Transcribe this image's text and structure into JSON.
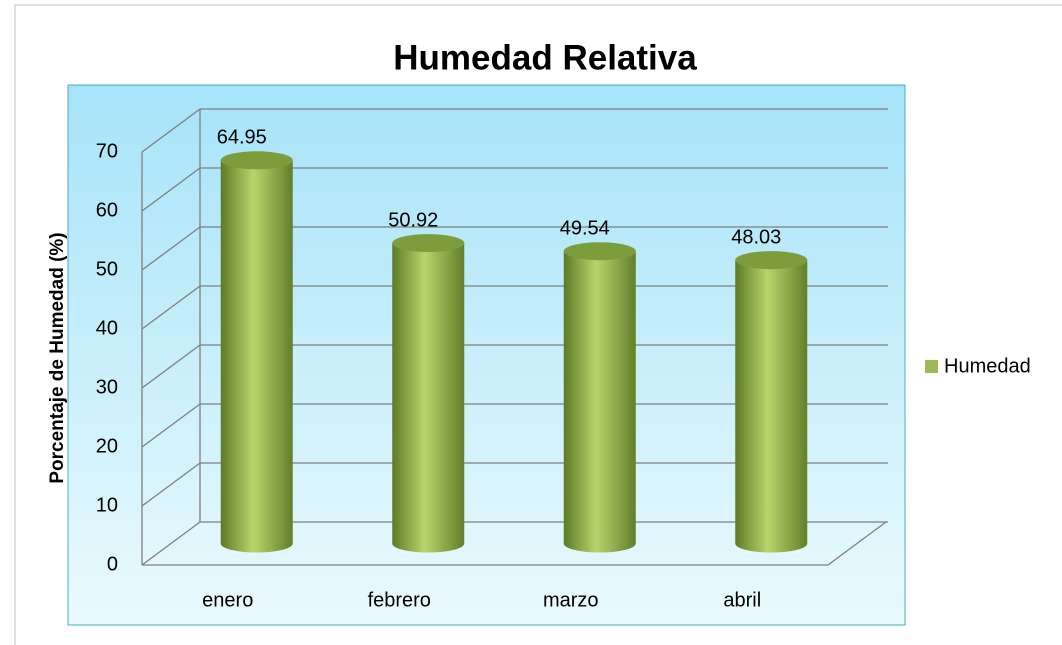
{
  "chart_data": {
    "type": "bar",
    "title": "Humedad Relativa",
    "y_label": "Porcentaje de Humedad (%)",
    "categories": [
      "enero",
      "febrero",
      "marzo",
      "abril"
    ],
    "series": [
      {
        "name": "Humedad",
        "color": "#9bbb59",
        "values": [
          64.95,
          50.92,
          49.54,
          48.03
        ]
      }
    ],
    "ylim": [
      0,
      70
    ],
    "yticks": [
      0,
      10,
      20,
      30,
      40,
      50,
      60,
      70
    ],
    "grid": true,
    "legend": "right"
  }
}
